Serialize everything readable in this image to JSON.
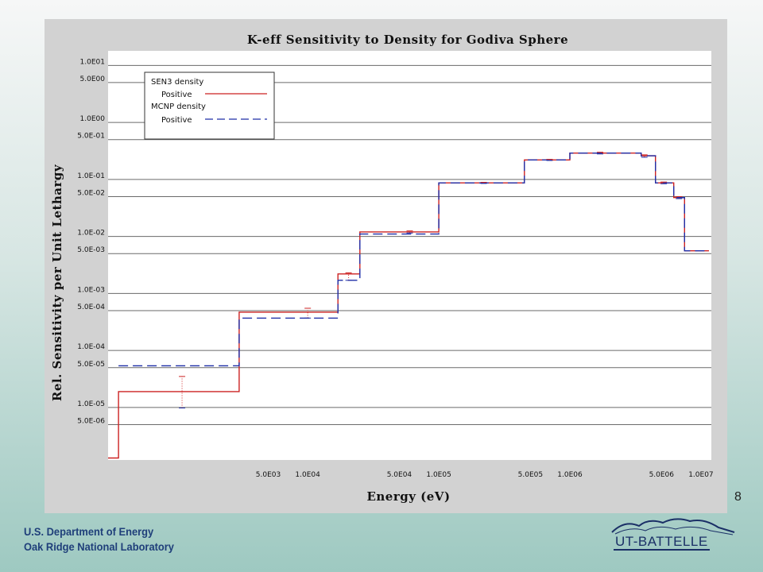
{
  "slide": {
    "page_number": "8",
    "footer": {
      "line1": "U.S. Department of Energy",
      "line2": "Oak Ridge National Laboratory"
    },
    "logo_text": "UT-BATTELLE"
  },
  "colors": {
    "background_top": "#f6f7f7",
    "background_bottom": "#9ec9c1",
    "frame": "#d2d2d2",
    "sen3": "#cc2222",
    "mcnp": "#1f2fa8",
    "footer_text": "#1f3f7a"
  },
  "chart_data": {
    "type": "line",
    "step": true,
    "title": "K-eff Sensitivity to Density for Godiva Sphere",
    "xlabel": "Energy (eV)",
    "ylabel": "Rel. Sensitivity per Unit Lethargy",
    "xscale": "log",
    "yscale": "log",
    "xlim": [
      300,
      12000000
    ],
    "ylim": [
      1.2e-06,
      18
    ],
    "grid": true,
    "legend_position": "top-left",
    "x_tick_labels": [
      {
        "value": 5000,
        "label": "5.0E03"
      },
      {
        "value": 10000,
        "label": "1.0E04"
      },
      {
        "value": 50000,
        "label": "5.0E04"
      },
      {
        "value": 100000,
        "label": "1.0E05"
      },
      {
        "value": 500000,
        "label": "5.0E05"
      },
      {
        "value": 1000000,
        "label": "1.0E06"
      },
      {
        "value": 5000000,
        "label": "5.0E06"
      },
      {
        "value": 10000000,
        "label": "1.0E07"
      }
    ],
    "y_tick_labels": [
      {
        "value": 10,
        "label": "1.0E01"
      },
      {
        "value": 5,
        "label": "5.0E00"
      },
      {
        "value": 1,
        "label": "1.0E00"
      },
      {
        "value": 0.5,
        "label": "5.0E-01"
      },
      {
        "value": 0.1,
        "label": "1.0E-01"
      },
      {
        "value": 0.05,
        "label": "5.0E-02"
      },
      {
        "value": 0.01,
        "label": "1.0E-02"
      },
      {
        "value": 0.005,
        "label": "5.0E-03"
      },
      {
        "value": 0.001,
        "label": "1.0E-03"
      },
      {
        "value": 0.0005,
        "label": "5.0E-04"
      },
      {
        "value": 0.0001,
        "label": "1.0E-04"
      },
      {
        "value": 5e-05,
        "label": "5.0E-05"
      },
      {
        "value": 1e-05,
        "label": "1.0E-05"
      },
      {
        "value": 5e-06,
        "label": "5.0E-06"
      }
    ],
    "legend": [
      {
        "group": "SEN3 density",
        "entry": "Positive",
        "style": "solid"
      },
      {
        "group": "MCNP density",
        "entry": "Positive",
        "style": "dashed"
      }
    ],
    "series": [
      {
        "name": "SEN3 density Positive",
        "style": "solid",
        "edges": [
          300,
          360,
          3000,
          17000,
          25000,
          100000,
          450000,
          1000000,
          3500000,
          4500000,
          6200000,
          7500000,
          11500000
        ],
        "values": [
          1.3e-06,
          1.9e-05,
          0.00047,
          0.0022,
          0.012,
          0.087,
          0.22,
          0.29,
          0.26,
          0.087,
          0.048,
          0.0056
        ]
      },
      {
        "name": "MCNP density Positive",
        "style": "dashed",
        "edges": [
          360,
          3000,
          17000,
          25000,
          100000,
          450000,
          1000000,
          3500000,
          4500000,
          6200000,
          7500000,
          11500000
        ],
        "values": [
          5.4e-05,
          0.00037,
          0.0017,
          0.011,
          0.087,
          0.22,
          0.29,
          0.26,
          0.087,
          0.048,
          0.0056
        ]
      }
    ],
    "error_bars": [
      {
        "x": 1100,
        "low": 9.8e-06,
        "high": 3.5e-05
      },
      {
        "x": 10000,
        "low": 0.00037,
        "high": 0.00055
      },
      {
        "x": 20500,
        "low": 0.0017,
        "high": 0.0023
      },
      {
        "x": 60000,
        "low": 0.0115,
        "high": 0.0125
      },
      {
        "x": 220000,
        "low": 0.085,
        "high": 0.089
      },
      {
        "x": 700000,
        "low": 0.215,
        "high": 0.225
      },
      {
        "x": 1700000,
        "low": 0.28,
        "high": 0.3
      },
      {
        "x": 3700000,
        "low": 0.245,
        "high": 0.27
      },
      {
        "x": 5200000,
        "low": 0.084,
        "high": 0.09
      },
      {
        "x": 6800000,
        "low": 0.046,
        "high": 0.05
      }
    ]
  }
}
